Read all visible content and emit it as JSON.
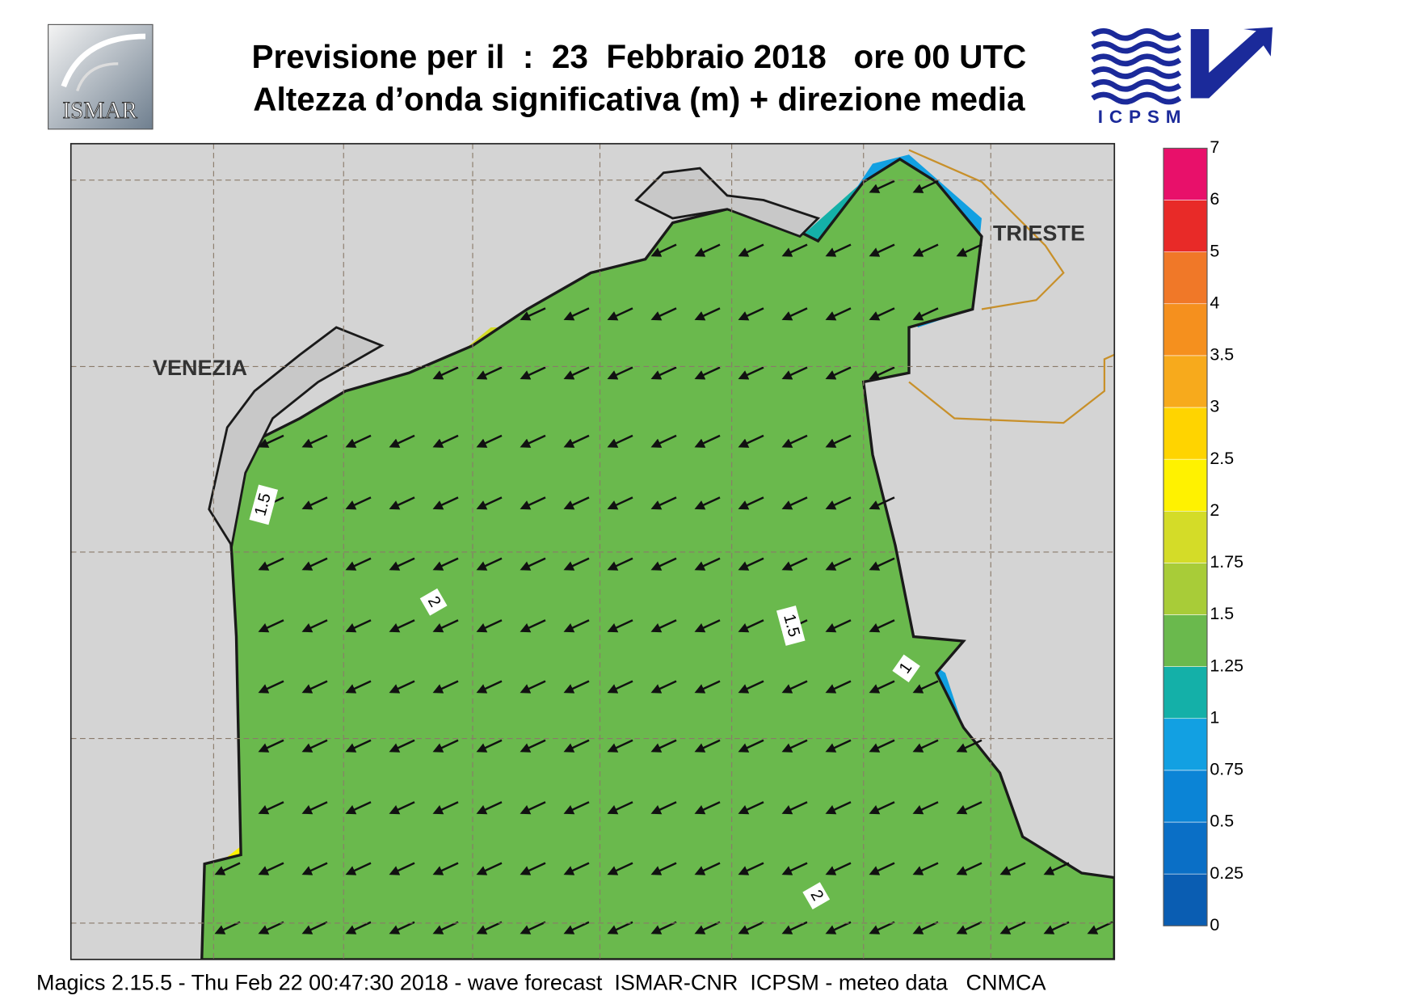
{
  "header": {
    "title": "Previsione per il  :  23  Febbraio 2018   ore 00 UTC",
    "subtitle": "Altezza d’onda significativa (m) + direzione media"
  },
  "logos": {
    "left": "ISMAR",
    "right": "ICPSM"
  },
  "map": {
    "places": [
      "VENEZIA",
      "TRIESTE"
    ],
    "contour_labels": [
      "1.5",
      "2",
      "1.5",
      "1",
      "2"
    ]
  },
  "colorbar": {
    "levels": [
      0,
      0.25,
      0.5,
      0.75,
      1,
      1.25,
      1.5,
      1.75,
      2,
      2.5,
      3,
      3.5,
      4,
      5,
      6,
      7
    ],
    "colors": [
      "#0a5db2",
      "#0a6fc6",
      "#0b84d6",
      "#12a0e2",
      "#14b0a8",
      "#6ab94d",
      "#a8cc38",
      "#d4dc28",
      "#fff200",
      "#ffd400",
      "#f7aa1c",
      "#f5901e",
      "#f07828",
      "#e82a28",
      "#e8106a"
    ]
  },
  "footer": "Magics 2.15.5 - Thu Feb 22 00:47:30 2018 - wave forecast  ISMAR-CNR  ICPSM - meteo data   CNMCA"
}
